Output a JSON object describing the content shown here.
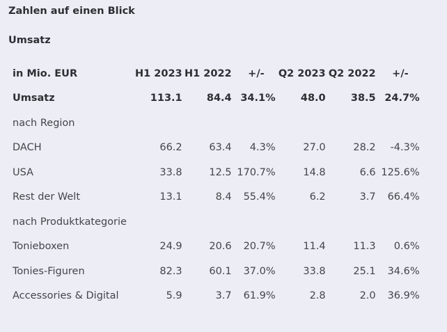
{
  "title": "Zahlen auf einen Blick",
  "section": "Umsatz",
  "table": {
    "headers": [
      "in Mio. EUR",
      "H1 2023",
      "H1 2022",
      "+/-",
      "Q2 2023",
      "Q2 2022",
      "+/-"
    ],
    "rows": [
      {
        "type": "total",
        "cells": [
          "Umsatz",
          "113.1",
          "84.4",
          "34.1%",
          "48.0",
          "38.5",
          "24.7%"
        ]
      },
      {
        "type": "group",
        "cells": [
          "nach Region",
          "",
          "",
          "",
          "",
          "",
          ""
        ]
      },
      {
        "type": "data",
        "cells": [
          "DACH",
          "66.2",
          "63.4",
          "4.3%",
          "27.0",
          "28.2",
          "-4.3%"
        ]
      },
      {
        "type": "data",
        "cells": [
          "USA",
          "33.8",
          "12.5",
          "170.7%",
          "14.8",
          "6.6",
          "125.6%"
        ]
      },
      {
        "type": "data",
        "cells": [
          "Rest der Welt",
          "13.1",
          "8.4",
          "55.4%",
          "6.2",
          "3.7",
          "66.4%"
        ]
      },
      {
        "type": "group",
        "cells": [
          "nach Produktkategorie",
          "",
          "",
          "",
          "",
          "",
          ""
        ]
      },
      {
        "type": "data",
        "cells": [
          "Tonieboxen",
          "24.9",
          "20.6",
          "20.7%",
          "11.4",
          "11.3",
          "0.6%"
        ]
      },
      {
        "type": "data",
        "cells": [
          "Tonies-Figuren",
          "82.3",
          "60.1",
          "37.0%",
          "33.8",
          "25.1",
          "34.6%"
        ]
      },
      {
        "type": "data",
        "cells": [
          "Accessories & Digital",
          "5.9",
          "3.7",
          "61.9%",
          "2.8",
          "2.0",
          "36.9%"
        ]
      }
    ]
  }
}
